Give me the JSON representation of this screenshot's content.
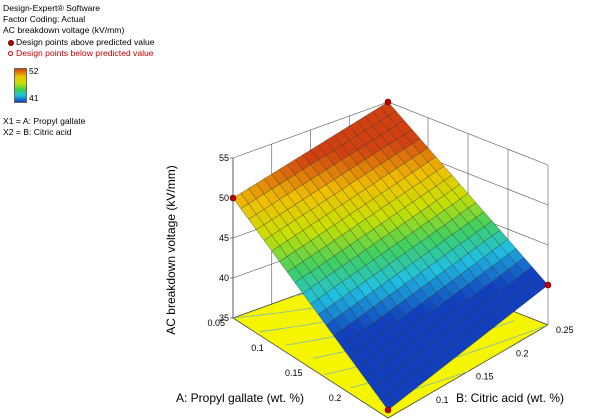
{
  "legend": {
    "software": "Design-Expert® Software",
    "coding": "Factor Coding: Actual",
    "response": "AC breakdown voltage  (kV/mm)",
    "above": "Design points above predicted value",
    "below": "Design points below predicted value",
    "scale_max": "52",
    "scale_min": "41",
    "x1": "X1 = A: Propyl gallate",
    "x2": "X2 = B: Citric acid"
  },
  "colors": {
    "point_above": "#c00000",
    "floor": "#f5f500",
    "contour": "#7fb8b0"
  },
  "chart_data": {
    "type": "surface",
    "zlabel": "AC breakdown voltage  (kV/mm)",
    "xlabel": "A: Propyl gallate (wt. %)",
    "ylabel": "B: Citric acid (wt. %)",
    "x_ticks": [
      "0.05",
      "0.1",
      "0.15",
      "0.2",
      "0.25"
    ],
    "y_ticks": [
      "0.05",
      "0.1",
      "0.15",
      "0.2",
      "0.25"
    ],
    "z_ticks": [
      "35",
      "40",
      "45",
      "50",
      "55"
    ],
    "xlim": [
      0.05,
      0.25
    ],
    "ylim": [
      0.05,
      0.25
    ],
    "zlim": [
      35,
      55
    ],
    "corners": [
      {
        "a": 0.05,
        "b": 0.05,
        "z": 50
      },
      {
        "a": 0.05,
        "b": 0.25,
        "z": 55
      },
      {
        "a": 0.25,
        "b": 0.25,
        "z": 40
      },
      {
        "a": 0.25,
        "b": 0.05,
        "z": 36
      }
    ],
    "design_points": [
      {
        "a": 0.05,
        "b": 0.05,
        "z": 50
      },
      {
        "a": 0.05,
        "b": 0.25,
        "z": 55
      },
      {
        "a": 0.25,
        "b": 0.25,
        "z": 40
      },
      {
        "a": 0.25,
        "b": 0.05,
        "z": 36
      }
    ],
    "color_range": [
      41,
      52
    ],
    "grid_divisions": 20
  }
}
